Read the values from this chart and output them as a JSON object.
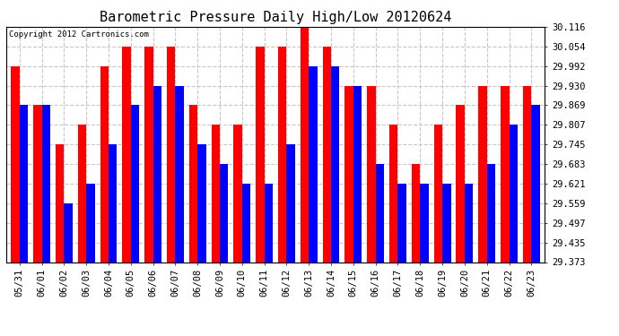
{
  "title": "Barometric Pressure Daily High/Low 20120624",
  "copyright": "Copyright 2012 Cartronics.com",
  "dates": [
    "05/31",
    "06/01",
    "06/02",
    "06/03",
    "06/04",
    "06/05",
    "06/06",
    "06/07",
    "06/08",
    "06/09",
    "06/10",
    "06/11",
    "06/12",
    "06/13",
    "06/14",
    "06/15",
    "06/16",
    "06/17",
    "06/18",
    "06/19",
    "06/20",
    "06/21",
    "06/22",
    "06/23"
  ],
  "highs": [
    29.992,
    29.869,
    29.745,
    29.807,
    29.992,
    30.054,
    30.054,
    30.054,
    29.869,
    29.807,
    29.807,
    30.054,
    30.054,
    30.116,
    30.054,
    29.93,
    29.93,
    29.807,
    29.683,
    29.807,
    29.869,
    29.93,
    29.93,
    29.93
  ],
  "lows": [
    29.869,
    29.869,
    29.559,
    29.621,
    29.745,
    29.869,
    29.93,
    29.93,
    29.745,
    29.683,
    29.621,
    29.621,
    29.745,
    29.992,
    29.992,
    29.93,
    29.683,
    29.621,
    29.621,
    29.621,
    29.621,
    29.683,
    29.807,
    29.869
  ],
  "bar_color_high": "#ff0000",
  "bar_color_low": "#0000ff",
  "background_color": "#ffffff",
  "plot_background": "#ffffff",
  "grid_color": "#c8c8c8",
  "ylim_min": 29.373,
  "ylim_max": 30.116,
  "yticks": [
    29.373,
    29.435,
    29.497,
    29.559,
    29.621,
    29.683,
    29.745,
    29.807,
    29.869,
    29.93,
    29.992,
    30.054,
    30.116
  ],
  "title_fontsize": 11,
  "tick_fontsize": 7.5,
  "copyright_fontsize": 6.5,
  "bar_width": 0.38
}
